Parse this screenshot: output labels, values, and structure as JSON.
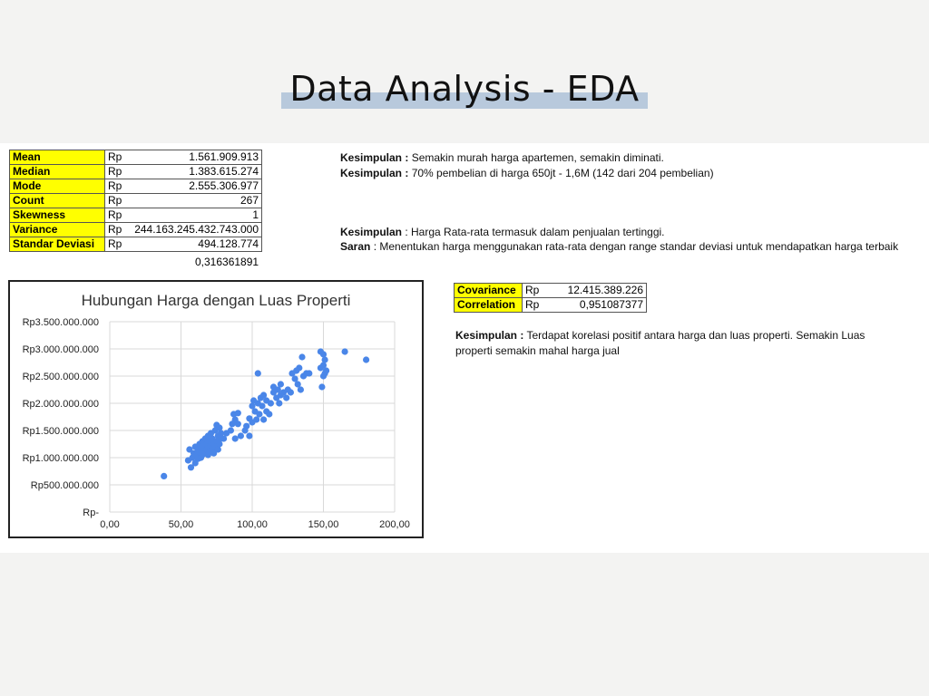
{
  "header": {
    "title": "Data Analysis - EDA"
  },
  "stats": {
    "rows": [
      {
        "label": "Mean",
        "currency": "Rp",
        "value": "1.561.909.913"
      },
      {
        "label": "Median",
        "currency": "Rp",
        "value": "1.383.615.274"
      },
      {
        "label": "Mode",
        "currency": "Rp",
        "value": "2.555.306.977"
      },
      {
        "label": "Count",
        "currency": "Rp",
        "value": "267"
      },
      {
        "label": "Skewness",
        "currency": "Rp",
        "value": "1"
      },
      {
        "label": "Variance",
        "currency": "Rp",
        "value": "244.163.245.432.743.000"
      },
      {
        "label": "Standar Deviasi",
        "currency": "Rp",
        "value": "494.128.774"
      }
    ],
    "extra_value": "0,316361891"
  },
  "notes": {
    "k1_label": "Kesimpulan :",
    "k1_text": " Semakin murah harga apartemen, semakin diminati.",
    "k2_label": "Kesimpulan :",
    "k2_text": " 70% pembelian di harga 650jt - 1,6M (142 dari 204 pembelian)",
    "k3_label": "Kesimpulan",
    "k3_text": " : Harga Rata-rata termasuk dalam penjualan tertinggi.",
    "saran_label": "Saran",
    "saran_text": " : Menentukan harga menggunakan rata-rata dengan range standar deviasi untuk mendapatkan harga terbaik"
  },
  "correlation": {
    "rows": [
      {
        "label": "Covariance",
        "currency": "Rp",
        "value": "12.415.389.226"
      },
      {
        "label": "Correlation",
        "currency": "Rp",
        "value": "0,951087377"
      }
    ],
    "note_label": "Kesimpulan :",
    "note_text": " Terdapat korelasi positif antara harga dan luas properti. Semakin Luas properti semakin mahal harga jual"
  },
  "chart_data": {
    "type": "scatter",
    "title": "Hubungan Harga dengan Luas Properti",
    "xlabel": "",
    "ylabel": "",
    "xlim": [
      0,
      200
    ],
    "ylim": [
      0,
      3500000000
    ],
    "x_ticks": [
      "0,00",
      "50,00",
      "100,00",
      "150,00",
      "200,00"
    ],
    "y_ticks": [
      "Rp-",
      "Rp500.000.000",
      "Rp1.000.000.000",
      "Rp1.500.000.000",
      "Rp2.000.000.000",
      "Rp2.500.000.000",
      "Rp3.000.000.000",
      "Rp3.500.000.000"
    ],
    "grid": true,
    "point_color": "#4a86e8",
    "points": [
      [
        38,
        660000000
      ],
      [
        55,
        950000000
      ],
      [
        56,
        1150000000
      ],
      [
        57,
        820000000
      ],
      [
        58,
        1000000000
      ],
      [
        59,
        1080000000
      ],
      [
        60,
        1200000000
      ],
      [
        60,
        900000000
      ],
      [
        61,
        1050000000
      ],
      [
        62,
        1150000000
      ],
      [
        62,
        980000000
      ],
      [
        63,
        1250000000
      ],
      [
        63,
        1100000000
      ],
      [
        64,
        1000000000
      ],
      [
        64,
        1180000000
      ],
      [
        65,
        1050000000
      ],
      [
        65,
        1300000000
      ],
      [
        66,
        1120000000
      ],
      [
        66,
        1220000000
      ],
      [
        67,
        1080000000
      ],
      [
        67,
        1350000000
      ],
      [
        68,
        1150000000
      ],
      [
        68,
        1250000000
      ],
      [
        69,
        1050000000
      ],
      [
        69,
        1400000000
      ],
      [
        70,
        1180000000
      ],
      [
        70,
        1300000000
      ],
      [
        70,
        1100000000
      ],
      [
        71,
        1220000000
      ],
      [
        71,
        1450000000
      ],
      [
        72,
        1150000000
      ],
      [
        72,
        1350000000
      ],
      [
        73,
        1250000000
      ],
      [
        73,
        1080000000
      ],
      [
        74,
        1500000000
      ],
      [
        74,
        1200000000
      ],
      [
        75,
        1300000000
      ],
      [
        75,
        1600000000
      ],
      [
        76,
        1150000000
      ],
      [
        76,
        1400000000
      ],
      [
        77,
        1550000000
      ],
      [
        77,
        1250000000
      ],
      [
        78,
        1350000000
      ],
      [
        78,
        1450000000
      ],
      [
        80,
        1350000000
      ],
      [
        82,
        1450000000
      ],
      [
        85,
        1500000000
      ],
      [
        86,
        1620000000
      ],
      [
        87,
        1800000000
      ],
      [
        88,
        1350000000
      ],
      [
        88,
        1700000000
      ],
      [
        90,
        1620000000
      ],
      [
        90,
        1820000000
      ],
      [
        92,
        1400000000
      ],
      [
        95,
        1500000000
      ],
      [
        96,
        1580000000
      ],
      [
        98,
        1720000000
      ],
      [
        98,
        1400000000
      ],
      [
        100,
        1950000000
      ],
      [
        100,
        1650000000
      ],
      [
        101,
        2050000000
      ],
      [
        102,
        1850000000
      ],
      [
        103,
        1700000000
      ],
      [
        104,
        2000000000
      ],
      [
        104,
        2550000000
      ],
      [
        105,
        1800000000
      ],
      [
        106,
        2100000000
      ],
      [
        107,
        1950000000
      ],
      [
        108,
        1700000000
      ],
      [
        108,
        2150000000
      ],
      [
        110,
        1850000000
      ],
      [
        110,
        2050000000
      ],
      [
        112,
        1800000000
      ],
      [
        113,
        2000000000
      ],
      [
        115,
        2200000000
      ],
      [
        115,
        2300000000
      ],
      [
        117,
        2100000000
      ],
      [
        118,
        2250000000
      ],
      [
        119,
        2000000000
      ],
      [
        120,
        2350000000
      ],
      [
        120,
        2150000000
      ],
      [
        122,
        2200000000
      ],
      [
        124,
        2100000000
      ],
      [
        125,
        2250000000
      ],
      [
        127,
        2200000000
      ],
      [
        128,
        2550000000
      ],
      [
        130,
        2450000000
      ],
      [
        131,
        2600000000
      ],
      [
        132,
        2350000000
      ],
      [
        133,
        2650000000
      ],
      [
        134,
        2250000000
      ],
      [
        135,
        2850000000
      ],
      [
        136,
        2500000000
      ],
      [
        138,
        2550000000
      ],
      [
        140,
        2550000000
      ],
      [
        148,
        2950000000
      ],
      [
        148,
        2650000000
      ],
      [
        149,
        2300000000
      ],
      [
        150,
        2900000000
      ],
      [
        150,
        2500000000
      ],
      [
        150,
        2700000000
      ],
      [
        151,
        2800000000
      ],
      [
        151,
        2550000000
      ],
      [
        152,
        2600000000
      ],
      [
        165,
        2950000000
      ],
      [
        180,
        2800000000
      ]
    ]
  }
}
